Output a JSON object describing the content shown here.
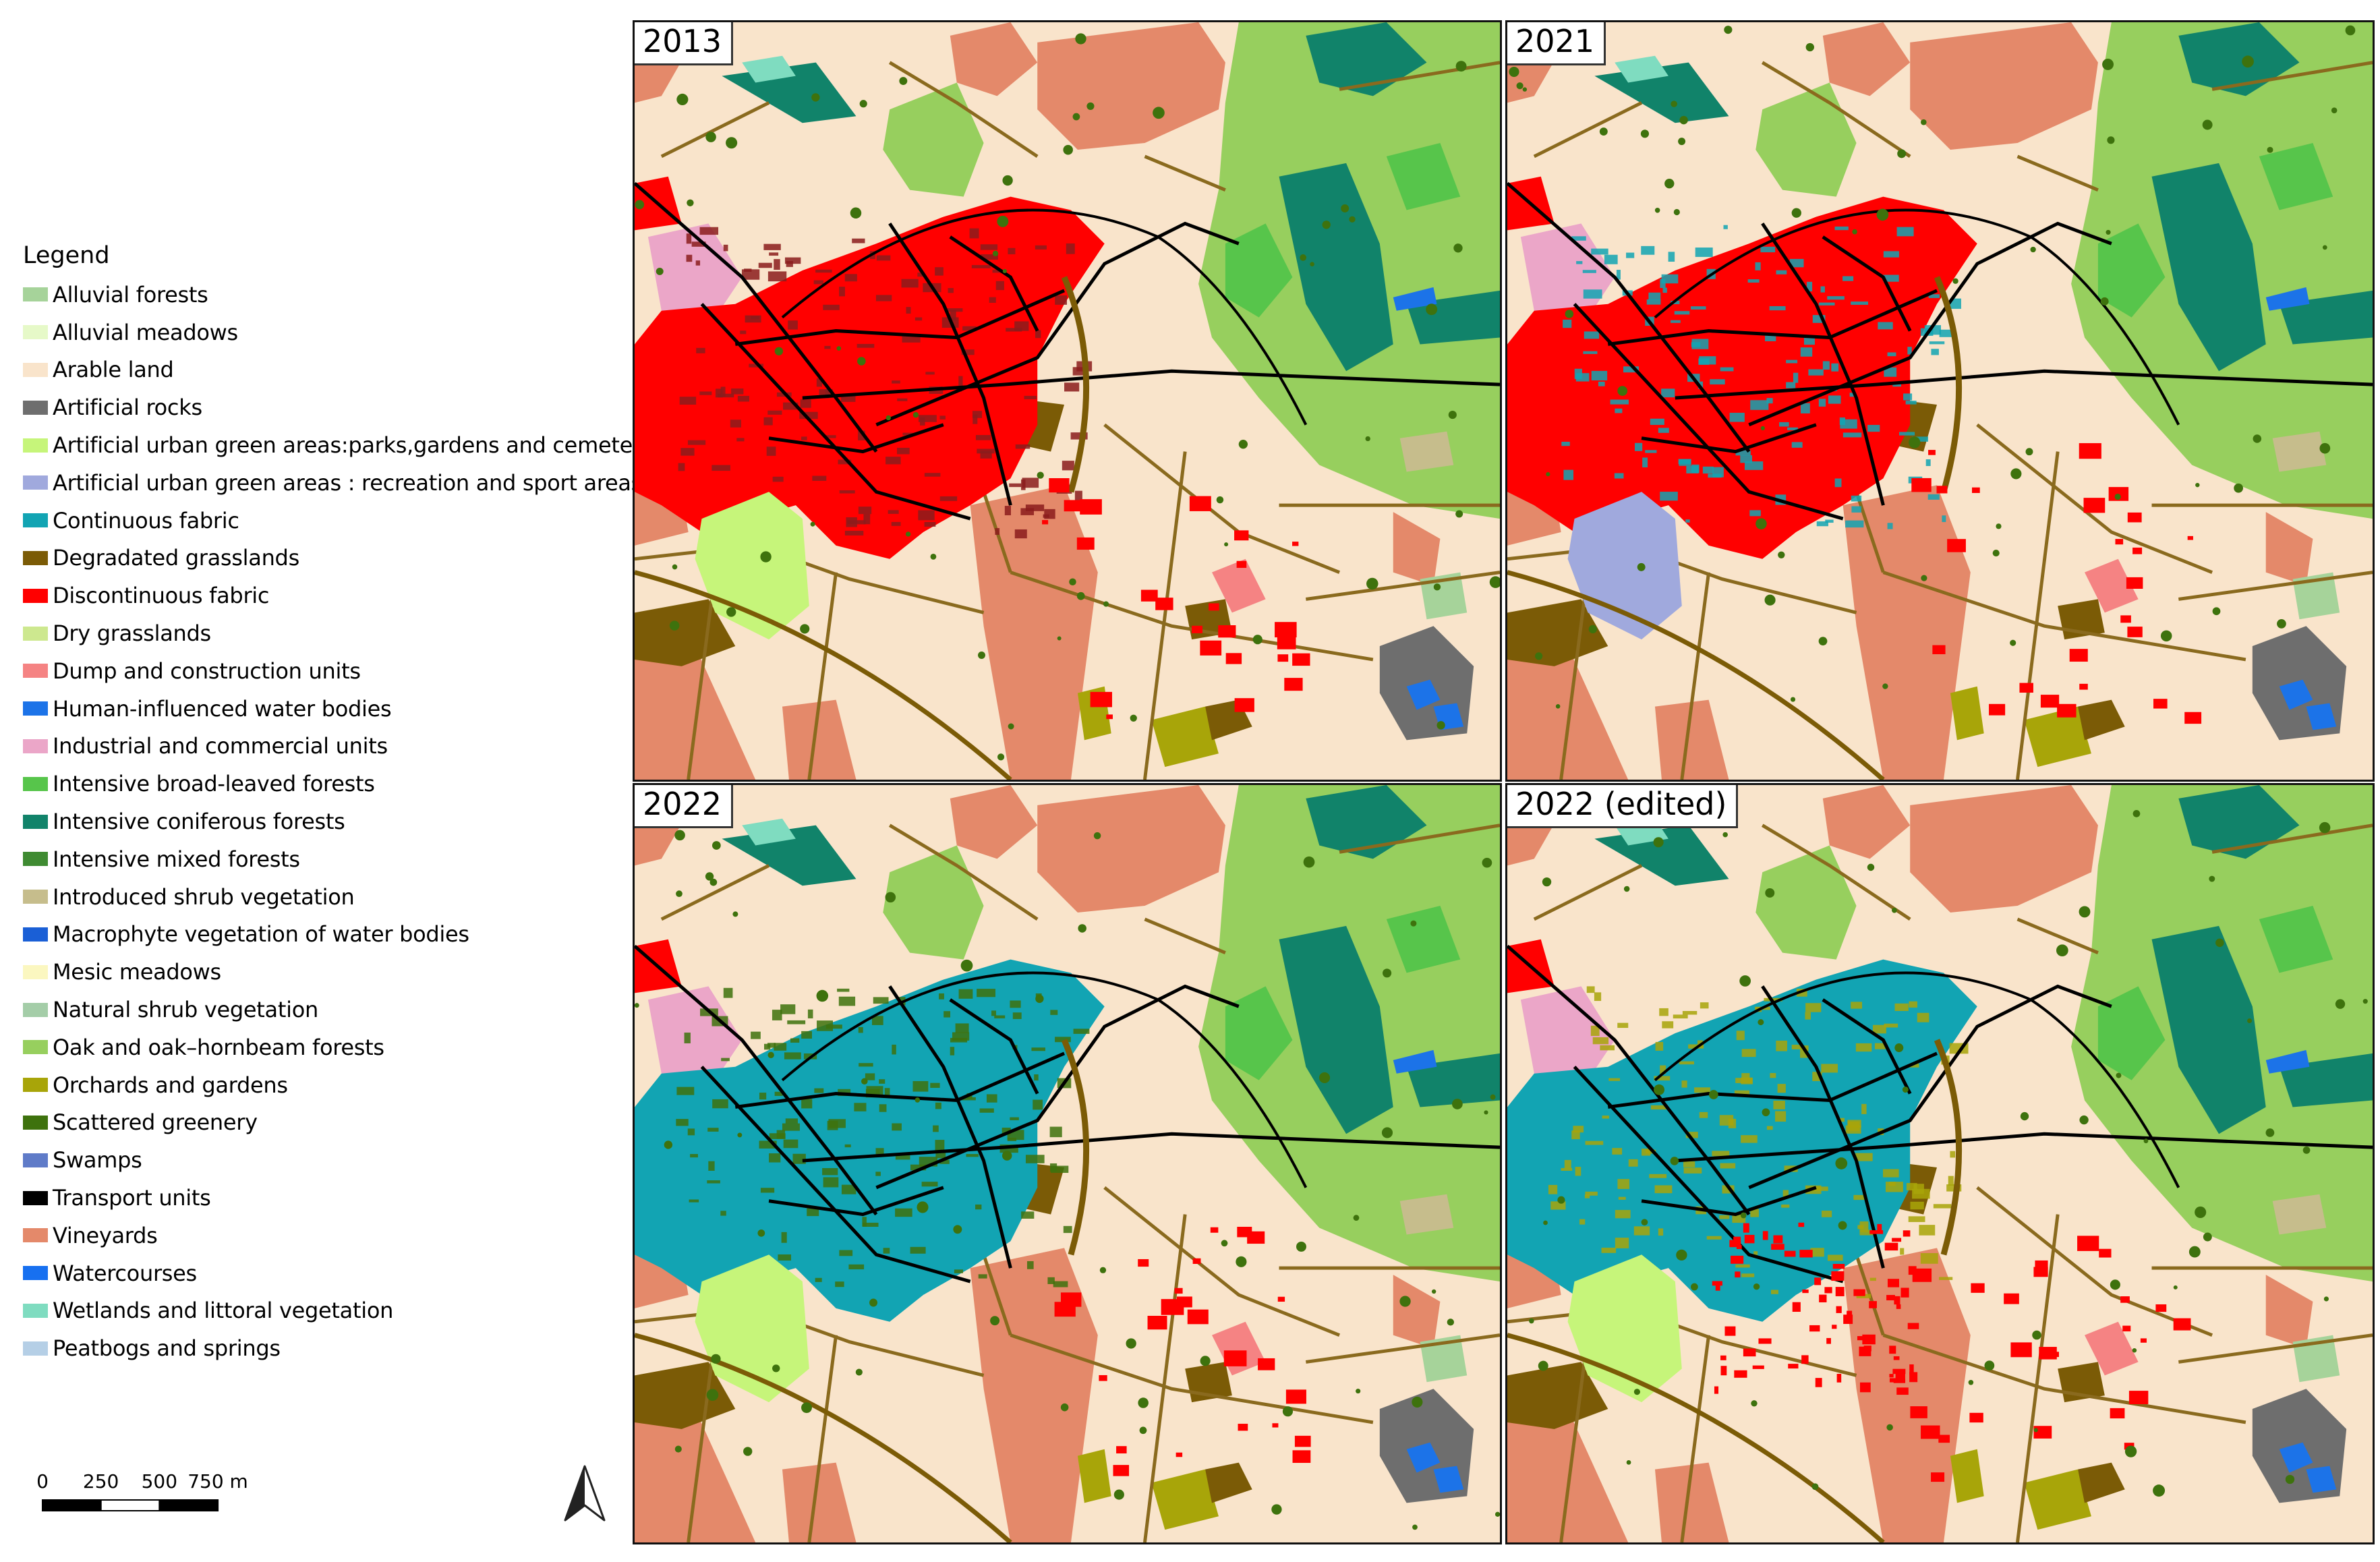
{
  "legend": {
    "title": "Legend",
    "items": [
      {
        "label": "Alluvial forests",
        "color": "#a6d39a"
      },
      {
        "label": "Alluvial meadows",
        "color": "#e6f9c8"
      },
      {
        "label": "Arable land",
        "color": "#f9e4cb"
      },
      {
        "label": "Artificial rocks",
        "color": "#6e6e6e"
      },
      {
        "label": "Artificial urban green areas:parks,gardens and cemeteries",
        "color": "#c6f57a"
      },
      {
        "label": "Artificial urban green areas : recreation and sport areas",
        "color": "#a0a9dd"
      },
      {
        "label": "Continuous fabric",
        "color": "#12a4b3"
      },
      {
        "label": "Degradated grasslands",
        "color": "#7b5b06"
      },
      {
        "label": "Discontinuous fabric",
        "color": "#ff0000"
      },
      {
        "label": "Dry grasslands",
        "color": "#cde88f"
      },
      {
        "label": "Dump and construction units",
        "color": "#f58383"
      },
      {
        "label": "Human-influenced water bodies",
        "color": "#1c73e8"
      },
      {
        "label": "Industrial and commercial units",
        "color": "#eba6c8"
      },
      {
        "label": "Intensive broad-leaved forests",
        "color": "#57c54b"
      },
      {
        "label": "Intensive coniferous forests",
        "color": "#11836a"
      },
      {
        "label": "Intensive mixed forests",
        "color": "#3f8b32"
      },
      {
        "label": "Introduced shrub vegetation",
        "color": "#c6bd8c"
      },
      {
        "label": "Macrophyte vegetation of water bodies",
        "color": "#1a5fd6"
      },
      {
        "label": "Mesic meadows",
        "color": "#fbf7c0"
      },
      {
        "label": "Natural shrub vegetation",
        "color": "#a4cda8"
      },
      {
        "label": "Oak and oak–hornbeam forests",
        "color": "#97cf5e"
      },
      {
        "label": "Orchards and gardens",
        "color": "#a8a509"
      },
      {
        "label": "Scattered greenery",
        "color": "#3e720d"
      },
      {
        "label": "Swamps",
        "color": "#5f7bc8"
      },
      {
        "label": "Transport units",
        "color": "#000000"
      },
      {
        "label": "Vineyards",
        "color": "#e4896a"
      },
      {
        "label": "Watercourses",
        "color": "#1770f0"
      },
      {
        "label": "Wetlands and littoral vegetation",
        "color": "#7fdcc0"
      },
      {
        "label": "Peatbogs and springs",
        "color": "#b5cfe6"
      }
    ]
  },
  "scalebar": {
    "ticks": [
      "0",
      "250",
      "500",
      "750 m"
    ],
    "tick_values": [
      0,
      250,
      500,
      750
    ]
  },
  "north_arrow": {
    "icon": "north-arrow-icon"
  },
  "panels": [
    {
      "label": "2013",
      "urban_color": "#ff0000",
      "urban_accent": "#8b1c1c",
      "green_color": "#c6f57a",
      "edited": false
    },
    {
      "label": "2021",
      "urban_color": "#ff0000",
      "urban_accent": "#12a4b3",
      "green_color": "#a0a9dd",
      "edited": false
    },
    {
      "label": "2022",
      "urban_color": "#12a4b3",
      "urban_accent": "#3e720d",
      "green_color": "#c6f57a",
      "edited": false
    },
    {
      "label": "2022 (edited)",
      "urban_color": "#12a4b3",
      "urban_accent": "#a8a509",
      "green_color": "#c6f57a",
      "edited": true
    }
  ]
}
